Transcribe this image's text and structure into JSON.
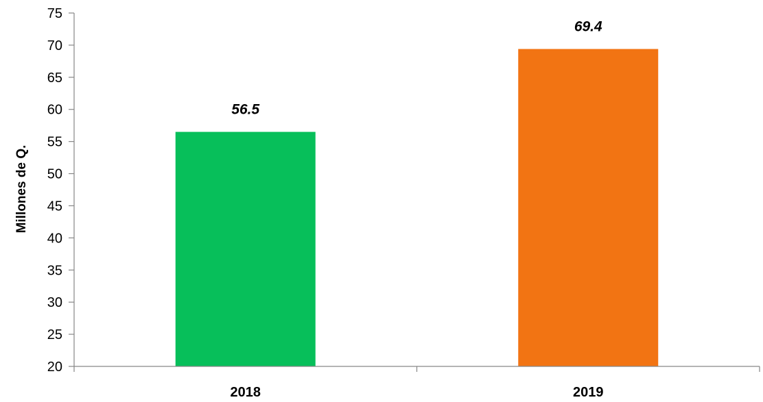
{
  "chart_data": {
    "type": "bar",
    "categories": [
      "2018",
      "2019"
    ],
    "values": [
      56.5,
      69.4
    ],
    "data_labels": [
      "56.5",
      "69.4"
    ],
    "colors": [
      "#07BF5A",
      "#F27413"
    ],
    "title": "",
    "xlabel": "",
    "ylabel": "Millones de Q.",
    "ylim": [
      20,
      75
    ],
    "yticks": [
      20,
      25,
      30,
      35,
      40,
      45,
      50,
      55,
      60,
      65,
      70,
      75
    ],
    "ytick_labels": [
      "20",
      "25",
      "30",
      "35",
      "40",
      "45",
      "50",
      "55",
      "60",
      "65",
      "70",
      "75"
    ],
    "grid": false,
    "legend": "none"
  }
}
